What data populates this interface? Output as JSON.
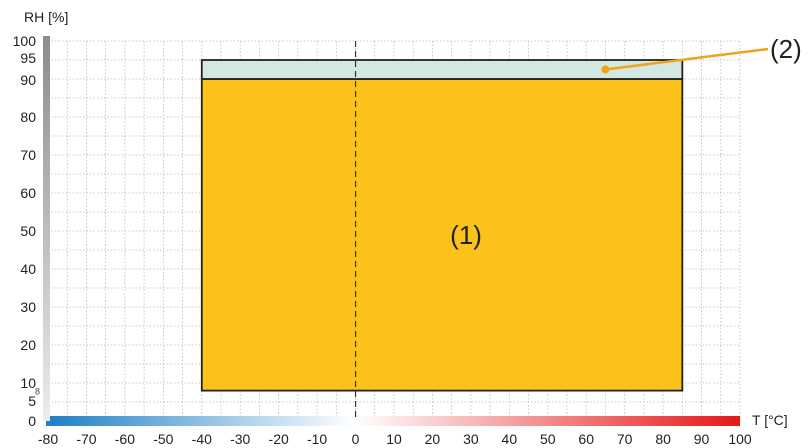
{
  "chart_data": {
    "type": "area",
    "title": "",
    "xlabel": "T [°C]",
    "ylabel": "RH [%]",
    "xlim": [
      -80,
      100
    ],
    "ylim": [
      0,
      100
    ],
    "x_ticks": [
      -80,
      -70,
      -60,
      -50,
      -40,
      -30,
      -20,
      -10,
      0,
      10,
      20,
      30,
      40,
      50,
      60,
      70,
      80,
      90,
      100
    ],
    "y_ticks": [
      0,
      5,
      10,
      20,
      30,
      40,
      50,
      60,
      70,
      80,
      90,
      95,
      100
    ],
    "y_minor_tick": 8,
    "grid": true,
    "reference_line_x": 0,
    "regions": [
      {
        "label": "(1)",
        "x": [
          -40,
          85
        ],
        "y": [
          8,
          90
        ],
        "color": "#fbc21c"
      },
      {
        "label": "(2)",
        "x": [
          -40,
          85
        ],
        "y": [
          90,
          95
        ],
        "color": "#d3e8e0",
        "callout": true
      }
    ],
    "x_gradient_colors": [
      "#1e7fc6",
      "#ffffff",
      "#e51818"
    ],
    "y_gradient_colors": [
      "#ececec",
      "#8c8c8c"
    ]
  }
}
